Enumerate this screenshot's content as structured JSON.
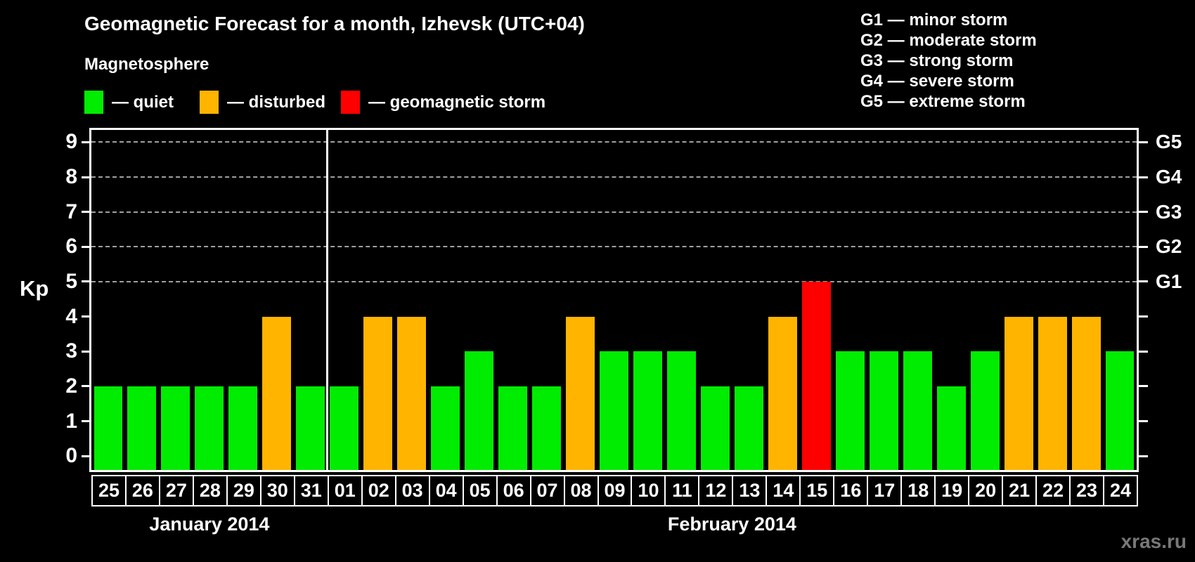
{
  "title": "Geomagnetic Forecast for a month, Izhevsk (UTC+04)",
  "subtitle": "Magnetosphere",
  "legend": {
    "items": [
      {
        "label": "— quiet",
        "color": "#00ec00",
        "status": "quiet"
      },
      {
        "label": "— disturbed",
        "color": "#ffb400",
        "status": "disturbed"
      },
      {
        "label": "— geomagnetic storm",
        "color": "#fd0000",
        "status": "storm"
      }
    ]
  },
  "g_legend": {
    "items": [
      "G1 — minor storm",
      "G2 — moderate storm",
      "G3 — strong storm",
      "G4 — severe storm",
      "G5 — extreme storm"
    ]
  },
  "watermark": "xras.ru",
  "chart_data": {
    "type": "bar",
    "ylabel": "Kp",
    "ylim": [
      -0.4,
      9.35
    ],
    "y_ticks": [
      0,
      1,
      2,
      3,
      4,
      5,
      6,
      7,
      8,
      9
    ],
    "gridlines": [
      5,
      6,
      7,
      8,
      9
    ],
    "grid_color": "#a0a0a0",
    "right_axis": [
      {
        "level": 5,
        "label": "G1"
      },
      {
        "level": 6,
        "label": "G2"
      },
      {
        "level": 7,
        "label": "G3"
      },
      {
        "level": 8,
        "label": "G4"
      },
      {
        "level": 9,
        "label": "G5"
      }
    ],
    "months": [
      {
        "label": "January 2014",
        "days": 7
      },
      {
        "label": "February 2014",
        "days": 24
      }
    ],
    "colors": {
      "quiet": "#00ec00",
      "disturbed": "#ffb400",
      "storm": "#fd0000"
    },
    "series": [
      {
        "day": "25",
        "kp": 2,
        "status": "quiet"
      },
      {
        "day": "26",
        "kp": 2,
        "status": "quiet"
      },
      {
        "day": "27",
        "kp": 2,
        "status": "quiet"
      },
      {
        "day": "28",
        "kp": 2,
        "status": "quiet"
      },
      {
        "day": "29",
        "kp": 2,
        "status": "quiet"
      },
      {
        "day": "30",
        "kp": 4,
        "status": "disturbed"
      },
      {
        "day": "31",
        "kp": 2,
        "status": "quiet"
      },
      {
        "day": "01",
        "kp": 2,
        "status": "quiet"
      },
      {
        "day": "02",
        "kp": 4,
        "status": "disturbed"
      },
      {
        "day": "03",
        "kp": 4,
        "status": "disturbed"
      },
      {
        "day": "04",
        "kp": 2,
        "status": "quiet"
      },
      {
        "day": "05",
        "kp": 3,
        "status": "quiet"
      },
      {
        "day": "06",
        "kp": 2,
        "status": "quiet"
      },
      {
        "day": "07",
        "kp": 2,
        "status": "quiet"
      },
      {
        "day": "08",
        "kp": 4,
        "status": "disturbed"
      },
      {
        "day": "09",
        "kp": 3,
        "status": "quiet"
      },
      {
        "day": "10",
        "kp": 3,
        "status": "quiet"
      },
      {
        "day": "11",
        "kp": 3,
        "status": "quiet"
      },
      {
        "day": "12",
        "kp": 2,
        "status": "quiet"
      },
      {
        "day": "13",
        "kp": 2,
        "status": "quiet"
      },
      {
        "day": "14",
        "kp": 4,
        "status": "disturbed"
      },
      {
        "day": "15",
        "kp": 5,
        "status": "storm"
      },
      {
        "day": "16",
        "kp": 3,
        "status": "quiet"
      },
      {
        "day": "17",
        "kp": 3,
        "status": "quiet"
      },
      {
        "day": "18",
        "kp": 3,
        "status": "quiet"
      },
      {
        "day": "19",
        "kp": 2,
        "status": "quiet"
      },
      {
        "day": "20",
        "kp": 3,
        "status": "quiet"
      },
      {
        "day": "21",
        "kp": 4,
        "status": "disturbed"
      },
      {
        "day": "22",
        "kp": 4,
        "status": "disturbed"
      },
      {
        "day": "23",
        "kp": 4,
        "status": "disturbed"
      },
      {
        "day": "24",
        "kp": 3,
        "status": "quiet"
      }
    ]
  }
}
